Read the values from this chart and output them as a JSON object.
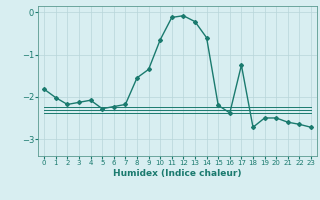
{
  "xlabel": "Humidex (Indice chaleur)",
  "background_color": "#d8eef1",
  "grid_color": "#b8d5da",
  "line_color": "#1a7a6e",
  "xlim": [
    -0.5,
    23.5
  ],
  "ylim": [
    -3.4,
    0.15
  ],
  "yticks": [
    0,
    -1,
    -2,
    -3
  ],
  "xticks": [
    0,
    1,
    2,
    3,
    4,
    5,
    6,
    7,
    8,
    9,
    10,
    11,
    12,
    13,
    14,
    15,
    16,
    17,
    18,
    19,
    20,
    21,
    22,
    23
  ],
  "series": [
    {
      "x": [
        0,
        1,
        2,
        3,
        4,
        5,
        6,
        7,
        8,
        9,
        10,
        11,
        12,
        13,
        14,
        15,
        16,
        17,
        18,
        19,
        20,
        21,
        22,
        23
      ],
      "y": [
        -1.82,
        -2.02,
        -2.18,
        -2.13,
        -2.08,
        -2.28,
        -2.23,
        -2.18,
        -1.55,
        -1.35,
        -0.65,
        -0.12,
        -0.08,
        -0.22,
        -0.6,
        -2.2,
        -2.38,
        -1.25,
        -2.72,
        -2.5,
        -2.5,
        -2.6,
        -2.65,
        -2.72
      ],
      "marker": "D",
      "markersize": 2.0,
      "linewidth": 1.0
    },
    {
      "x": [
        0,
        23
      ],
      "y": [
        -2.25,
        -2.25
      ],
      "marker": null,
      "linewidth": 0.7
    },
    {
      "x": [
        0,
        23
      ],
      "y": [
        -2.32,
        -2.32
      ],
      "marker": null,
      "linewidth": 0.7
    },
    {
      "x": [
        0,
        23
      ],
      "y": [
        -2.38,
        -2.38
      ],
      "marker": null,
      "linewidth": 0.7
    }
  ]
}
